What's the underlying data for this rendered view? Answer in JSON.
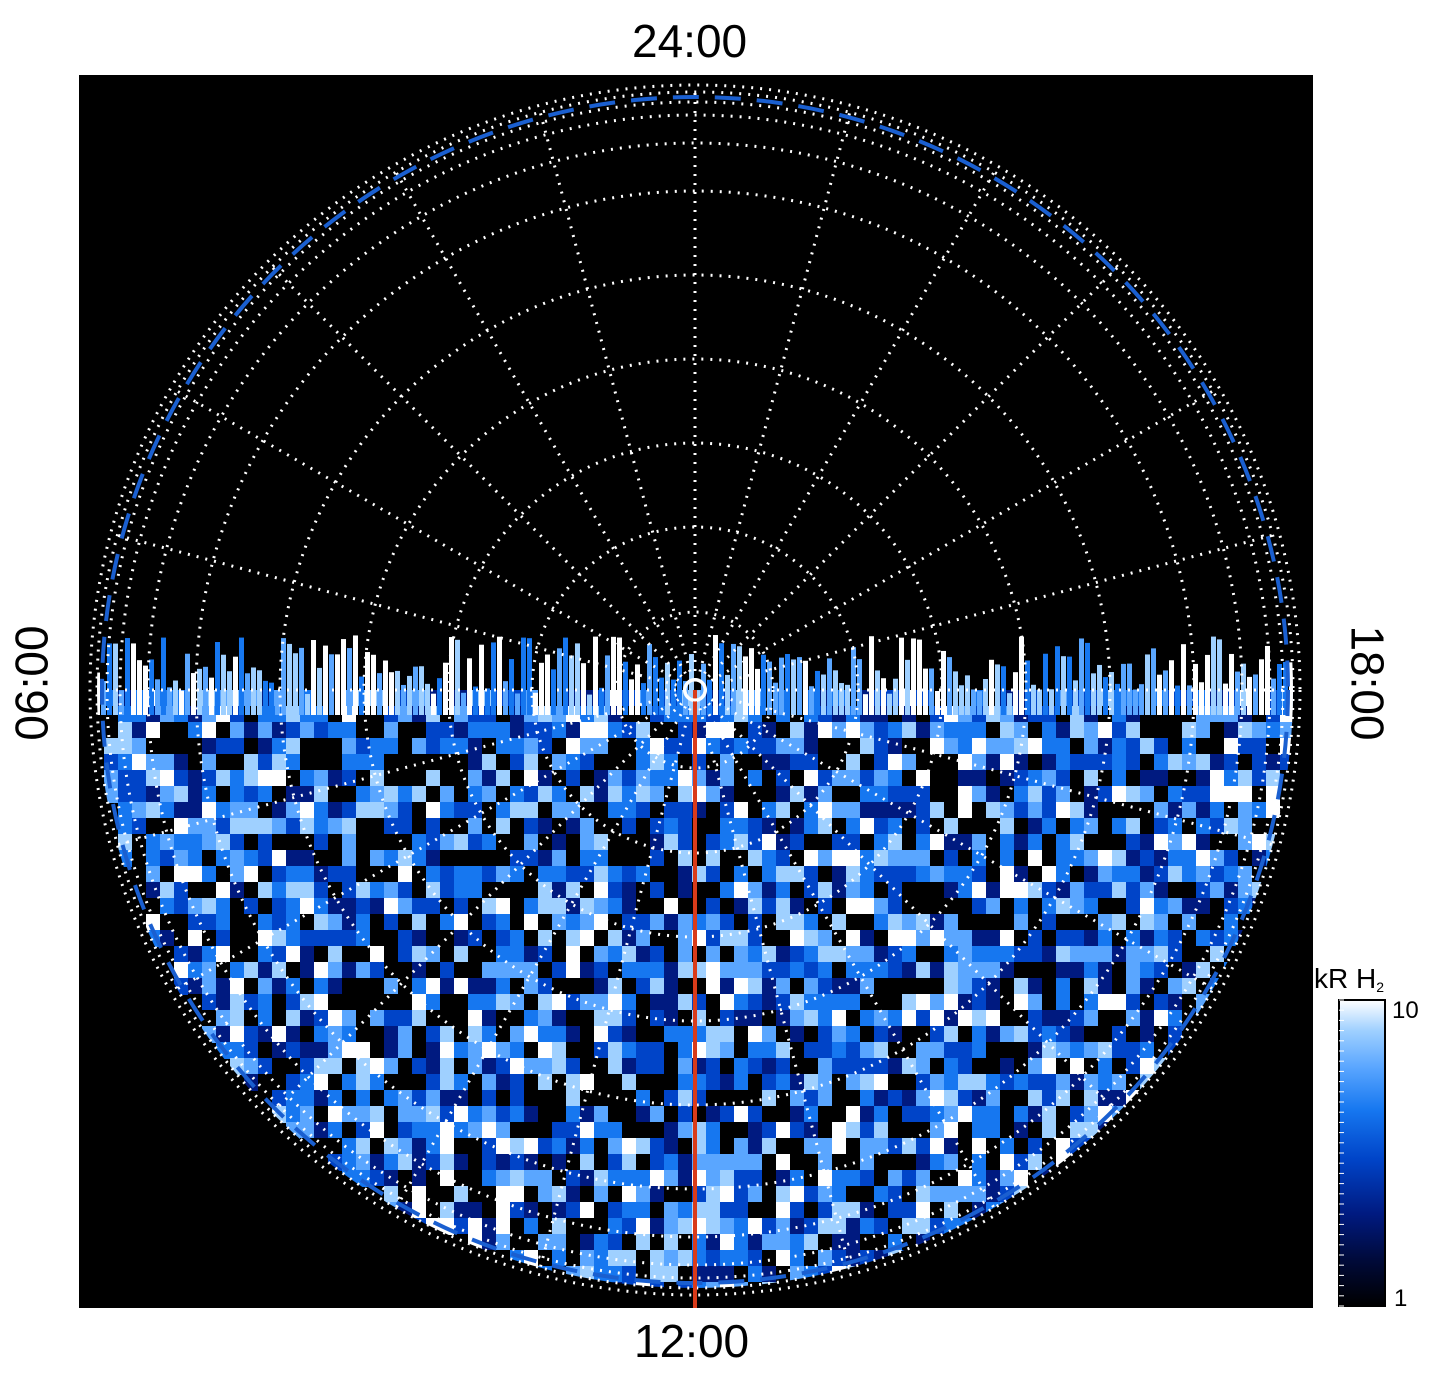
{
  "figure": {
    "type": "polar auroral emission map",
    "local_time_labels": {
      "top": "24:00",
      "bottom": "12:00",
      "left": "06:00",
      "right": "18:00"
    },
    "colorbar": {
      "title_main": "kR H",
      "title_sub": "2",
      "max_label": "10",
      "min_label": "1",
      "colors": [
        "#000000",
        "#000a3a",
        "#001a80",
        "#0044c8",
        "#1677f0",
        "#5aa6ff",
        "#9fd0ff",
        "#ffffff"
      ]
    },
    "colors": {
      "background": "#000000",
      "grid": "#ffffff",
      "dashed_boundary": "#1a5fd0",
      "meridian_line": "#d93b1a"
    }
  }
}
